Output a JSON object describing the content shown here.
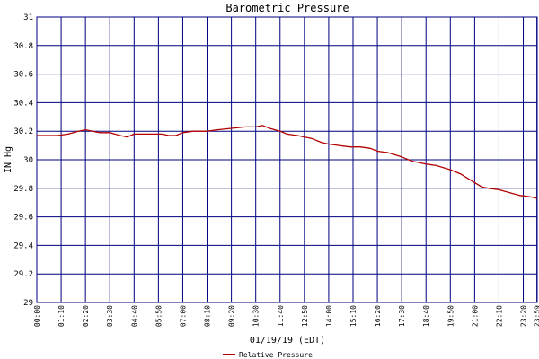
{
  "chart_data": {
    "type": "line",
    "title": "Barometric Pressure",
    "xlabel": "01/19/19 (EDT)",
    "ylabel": "IN Hg",
    "ylim": [
      29,
      31
    ],
    "yticks": [
      "29",
      "29.2",
      "29.4",
      "29.6",
      "29.8",
      "30",
      "30.2",
      "30.4",
      "30.6",
      "30.8",
      "31"
    ],
    "xticks": [
      "00:00",
      "01:10",
      "02:20",
      "03:30",
      "04:40",
      "05:50",
      "07:00",
      "08:10",
      "09:20",
      "10:30",
      "11:40",
      "12:50",
      "14:00",
      "15:10",
      "16:20",
      "17:30",
      "18:40",
      "19:50",
      "21:00",
      "22:10",
      "23:20",
      "23:59"
    ],
    "grid": true,
    "legend_position": "bottom-center",
    "line_color": "#b40000",
    "grid_color": "#000080",
    "series": [
      {
        "name": "Relative Pressure",
        "x": [
          "00:00",
          "00:30",
          "01:00",
          "01:30",
          "02:00",
          "02:20",
          "03:00",
          "03:30",
          "04:00",
          "04:20",
          "04:40",
          "05:00",
          "05:30",
          "06:00",
          "06:20",
          "06:40",
          "07:00",
          "07:30",
          "08:10",
          "08:40",
          "09:20",
          "10:00",
          "10:30",
          "10:50",
          "11:10",
          "11:40",
          "12:00",
          "12:30",
          "12:50",
          "13:10",
          "13:40",
          "14:00",
          "14:30",
          "15:00",
          "15:30",
          "16:00",
          "16:20",
          "16:50",
          "17:30",
          "18:00",
          "18:40",
          "19:10",
          "19:50",
          "20:20",
          "20:40",
          "21:00",
          "21:20",
          "21:40",
          "22:10",
          "22:40",
          "23:10",
          "23:40",
          "23:59"
        ],
        "values": [
          30.17,
          30.17,
          30.17,
          30.18,
          30.2,
          30.21,
          30.19,
          30.19,
          30.17,
          30.16,
          30.18,
          30.18,
          30.18,
          30.18,
          30.17,
          30.17,
          30.19,
          30.2,
          30.2,
          30.21,
          30.22,
          30.23,
          30.23,
          30.24,
          30.22,
          30.2,
          30.18,
          30.17,
          30.16,
          30.15,
          30.12,
          30.11,
          30.1,
          30.09,
          30.09,
          30.08,
          30.06,
          30.05,
          30.02,
          29.99,
          29.97,
          29.96,
          29.93,
          29.9,
          29.87,
          29.84,
          29.81,
          29.8,
          29.79,
          29.77,
          29.75,
          29.74,
          29.73
        ]
      }
    ]
  }
}
